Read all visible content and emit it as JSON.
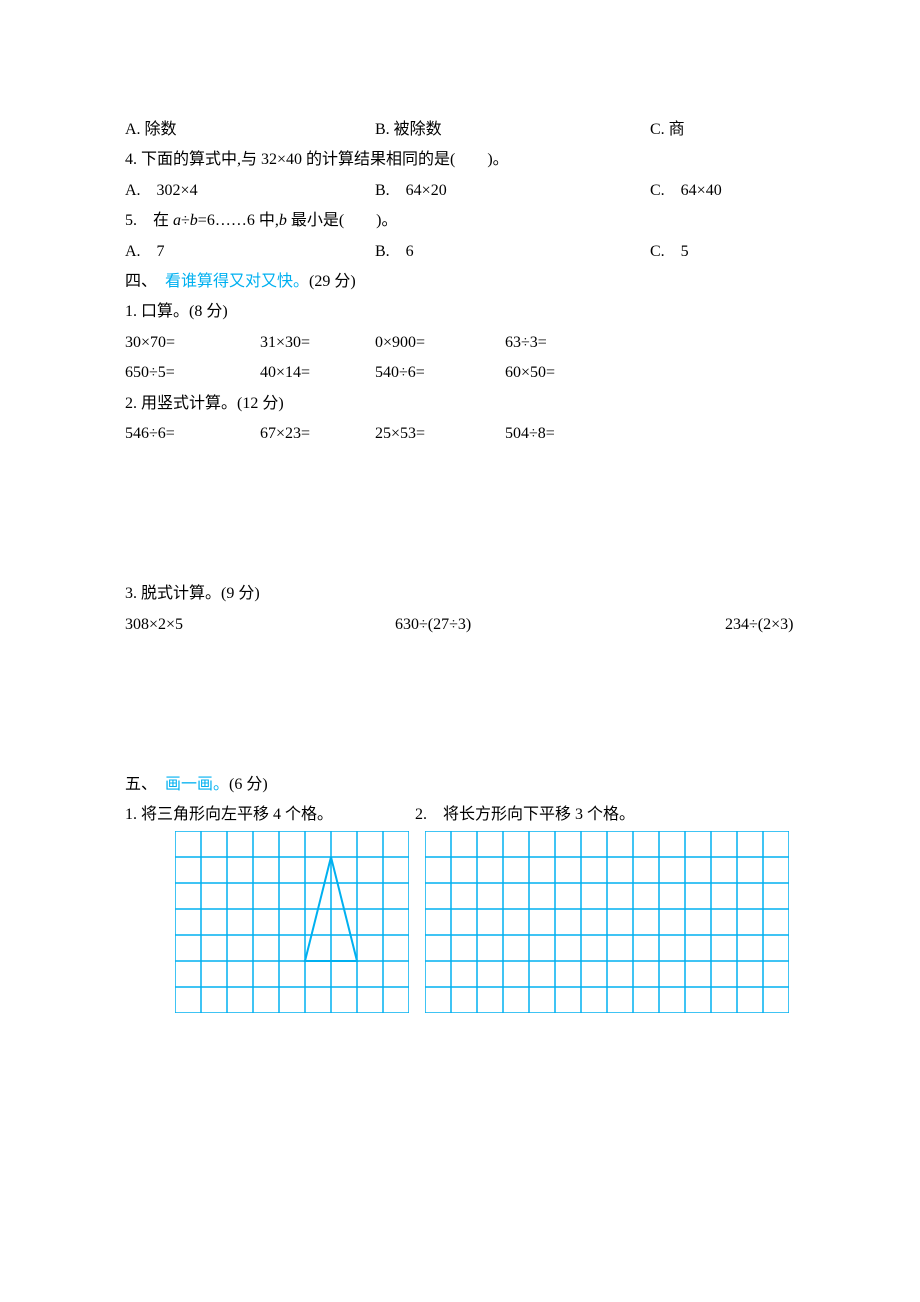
{
  "q3_options": {
    "a": "A. 除数",
    "b": "B. 被除数",
    "c": "C. 商"
  },
  "q4": {
    "stem": "4. 下面的算式中,与 32×40 的计算结果相同的是(　　)。",
    "a": "A.　302×4",
    "b": "B.　64×20",
    "c": "C.　64×40"
  },
  "q5": {
    "prefix": "5.　在 ",
    "expr_a": "a",
    "mid1": "÷",
    "expr_b": "b",
    "mid2": "=6……6 中,",
    "expr_b2": "b",
    "suffix": " 最小是(　　)。",
    "a": "A.　7",
    "b": "B.　6",
    "c": "C.　5"
  },
  "section4": {
    "num": "四、　",
    "title": "看谁算得又对又快。",
    "points": "(29 分)"
  },
  "p4_1": {
    "title": "1. 口算。(8 分)",
    "r1c1": "30×70=",
    "r1c2": "31×30=",
    "r1c3": "0×900=",
    "r1c4": "63÷3=",
    "r2c1": "650÷5=",
    "r2c2": "40×14=",
    "r2c3": "540÷6=",
    "r2c4": "60×50="
  },
  "p4_2": {
    "title": "2. 用竖式计算。(12 分)",
    "c1": "546÷6=",
    "c2": "67×23=",
    "c3": "25×53=",
    "c4": "504÷8="
  },
  "p4_3": {
    "title": "3. 脱式计算。(9 分)",
    "c1": "308×2×5",
    "c2": "630÷(27÷3)",
    "c3": "234÷(2×3)"
  },
  "section5": {
    "num": "五、　",
    "title": "画一画。",
    "points": "(6 分)"
  },
  "p5": {
    "c1": "1. 将三角形向左平移 4 个格。",
    "c2": "2.　将长方形向下平移 3 个格。"
  },
  "grid": {
    "cell_size": 26,
    "cols1": 9,
    "rows1": 7,
    "cols2": 14,
    "rows2": 7,
    "line_color": "#00b0f0",
    "line_width": 1.5,
    "triangle_color": "#00b0f0",
    "triangle_width": 2,
    "triangle_points": [
      [
        5,
        5
      ],
      [
        6,
        1
      ],
      [
        7,
        5
      ]
    ]
  }
}
